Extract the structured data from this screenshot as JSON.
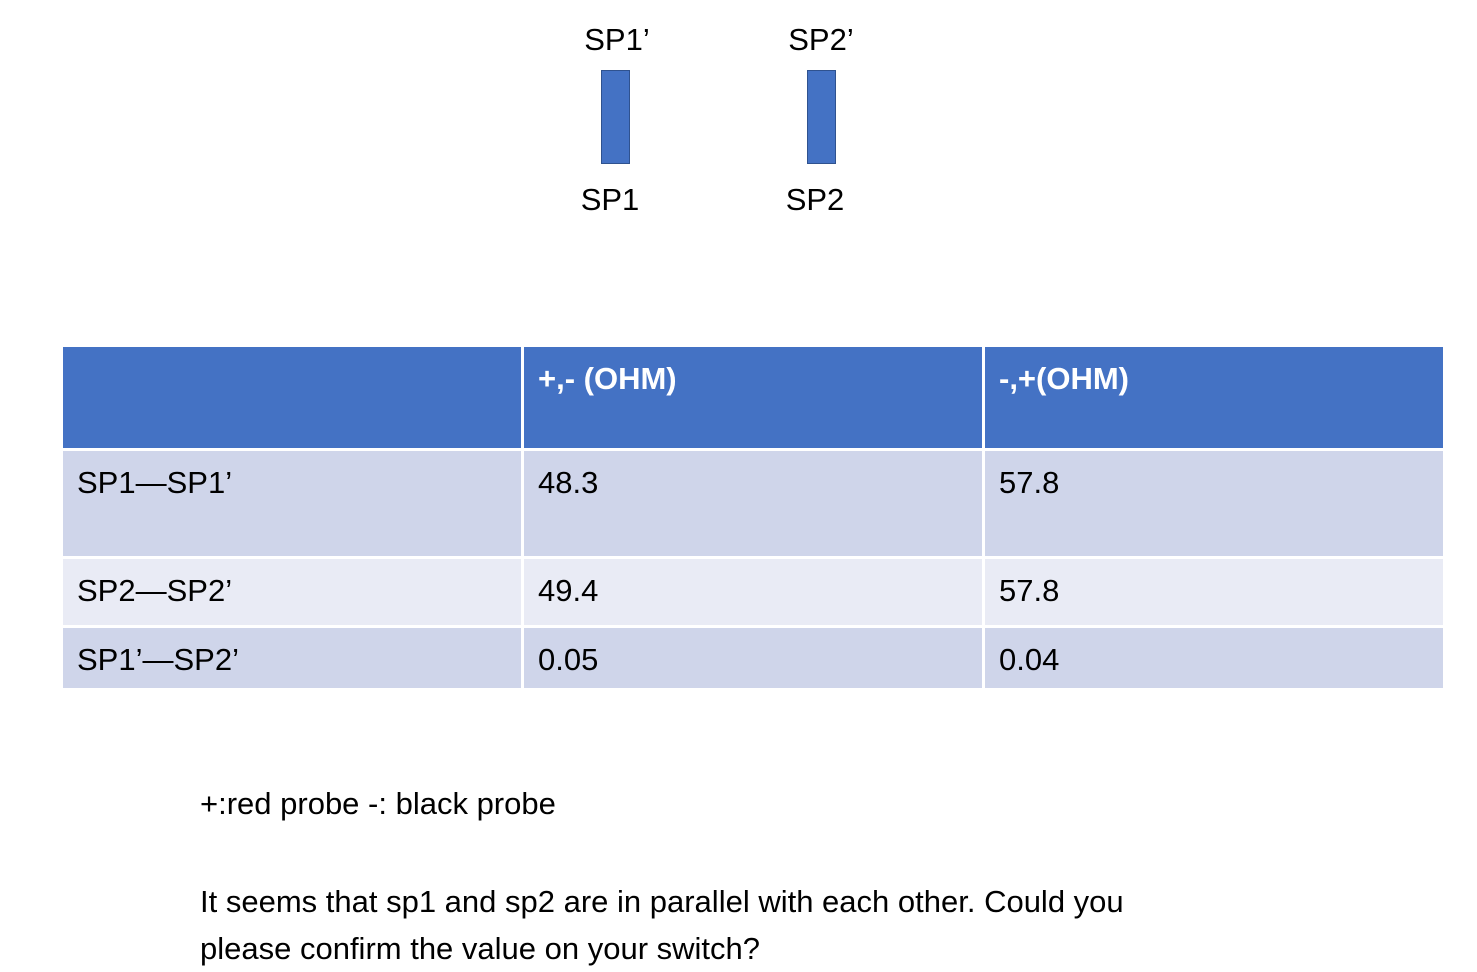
{
  "diagram": {
    "switches": [
      {
        "top_label": "SP1’",
        "bottom_label": "SP1"
      },
      {
        "top_label": "SP2’",
        "bottom_label": "SP2"
      }
    ]
  },
  "table": {
    "header": [
      "+,- (OHM)",
      "-,+(OHM)"
    ],
    "rows": [
      [
        "SP1—SP1’",
        48.3,
        57.8
      ],
      [
        "SP2—SP2’",
        49.4,
        57.8
      ],
      [
        "SP1’—SP2’",
        0.05,
        0.04
      ]
    ]
  },
  "notes": {
    "legend": "+:red probe -: black probe",
    "question": "It seems that sp1 and sp2 are in parallel with each other. Could you please confirm the value on your switch?"
  }
}
